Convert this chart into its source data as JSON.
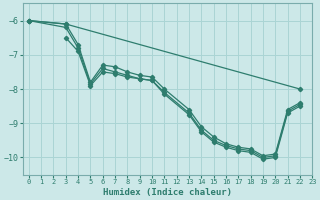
{
  "xlabel": "Humidex (Indice chaleur)",
  "xlim": [
    -0.5,
    23
  ],
  "ylim": [
    -10.5,
    -5.5
  ],
  "xticks": [
    0,
    1,
    2,
    3,
    4,
    5,
    6,
    7,
    8,
    9,
    10,
    11,
    12,
    13,
    14,
    15,
    16,
    17,
    18,
    19,
    20,
    21,
    22,
    23
  ],
  "yticks": [
    -10,
    -9,
    -8,
    -7,
    -6
  ],
  "bg_color": "#cce8e8",
  "line_color": "#2e7d6e",
  "grid_color": "#aad4d4",
  "lines": [
    {
      "x": [
        0,
        3,
        22
      ],
      "y": [
        -6.0,
        -6.1,
        -8.0
      ]
    },
    {
      "x": [
        0,
        3,
        4,
        5,
        6,
        7,
        8,
        9,
        10,
        11,
        13,
        14,
        15,
        16,
        17,
        18,
        19,
        20,
        21,
        22
      ],
      "y": [
        -6.0,
        -6.1,
        -6.7,
        -7.8,
        -7.3,
        -7.35,
        -7.5,
        -7.6,
        -7.65,
        -8.0,
        -8.6,
        -9.1,
        -9.4,
        -9.6,
        -9.7,
        -9.75,
        -9.95,
        -9.9,
        -8.6,
        -8.4
      ]
    },
    {
      "x": [
        0,
        3,
        4,
        5,
        6,
        7,
        8,
        9,
        10,
        11,
        13,
        14,
        15,
        16,
        17,
        18,
        19,
        20,
        21,
        22
      ],
      "y": [
        -6.0,
        -6.2,
        -6.8,
        -7.85,
        -7.4,
        -7.5,
        -7.6,
        -7.7,
        -7.75,
        -8.1,
        -8.7,
        -9.2,
        -9.5,
        -9.65,
        -9.75,
        -9.8,
        -10.0,
        -9.95,
        -8.65,
        -8.45
      ]
    },
    {
      "x": [
        3,
        4,
        5,
        6,
        7,
        8,
        9,
        10,
        11,
        13,
        14,
        15,
        16,
        17,
        18,
        19,
        20,
        21,
        22
      ],
      "y": [
        -6.5,
        -6.9,
        -7.9,
        -7.5,
        -7.55,
        -7.65,
        -7.7,
        -7.75,
        -8.15,
        -8.75,
        -9.25,
        -9.55,
        -9.7,
        -9.8,
        -9.85,
        -10.05,
        -10.0,
        -8.7,
        -8.5
      ]
    }
  ]
}
